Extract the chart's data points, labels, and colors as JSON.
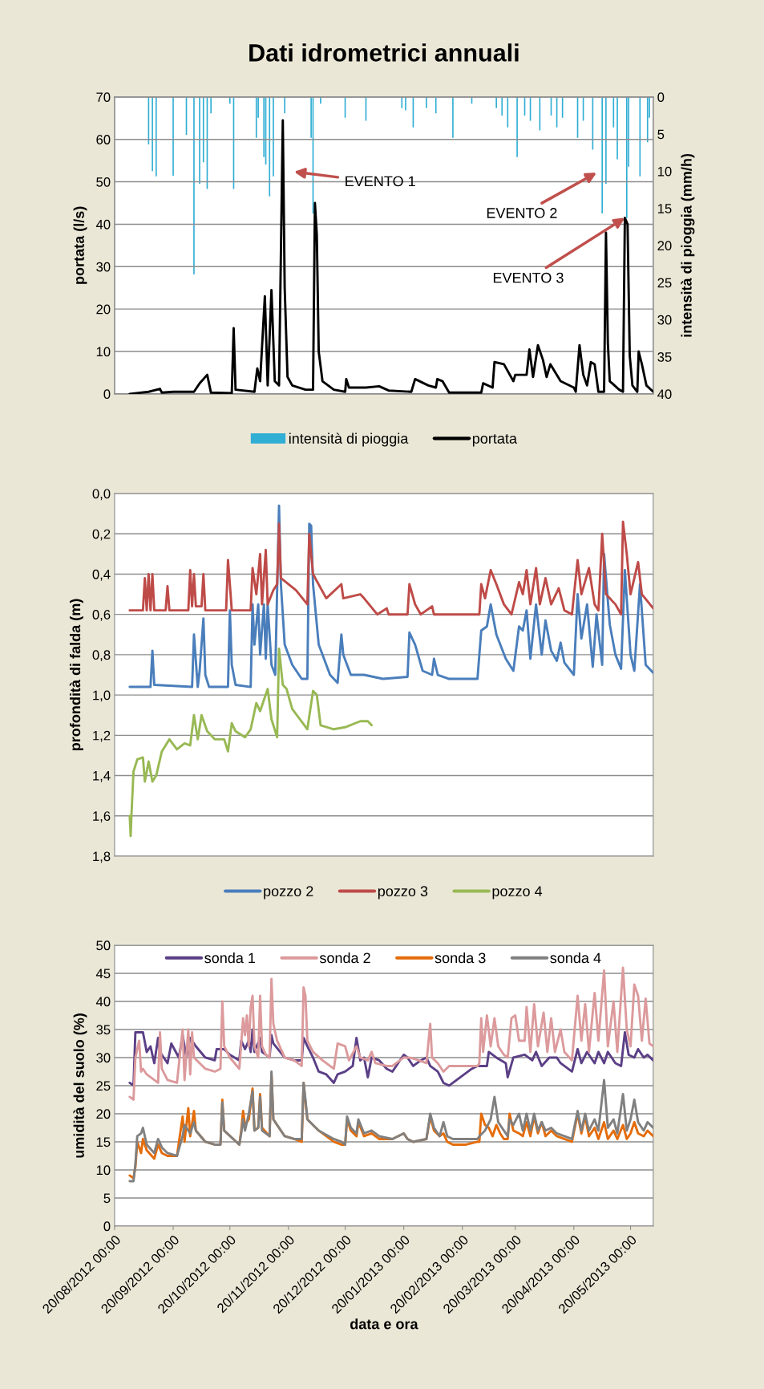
{
  "chart_data": [
    {
      "type": "line",
      "title": "Dati idrometrici annuali",
      "ylabel": "portata (l/s)",
      "y2label": "intensità di pioggia (mm/h)",
      "xlim": [
        "2012-08-20",
        "2013-06-01"
      ],
      "ylim": [
        0,
        70
      ],
      "yticks": [
        0,
        10,
        20,
        30,
        40,
        50,
        60,
        70
      ],
      "y2lim": [
        40,
        0
      ],
      "y2ticks": [
        0,
        5,
        10,
        15,
        20,
        25,
        30,
        35,
        40
      ],
      "grid": "y",
      "legend": "bottom",
      "tick_labels": "y",
      "series": [
        {
          "name": "intensità di pioggia",
          "type": "bar",
          "axis": "y2",
          "color": "#31aed4",
          "x": [
            "2012-09-07",
            "2012-09-09",
            "2012-09-11",
            "2012-09-20",
            "2012-09-27",
            "2012-10-01",
            "2012-10-04",
            "2012-10-06",
            "2012-10-08",
            "2012-10-10",
            "2012-10-20",
            "2012-10-22",
            "2012-11-03",
            "2012-11-04",
            "2012-11-07",
            "2012-11-08",
            "2012-11-10",
            "2012-11-12",
            "2012-11-18",
            "2012-12-02",
            "2012-12-03",
            "2012-12-07",
            "2012-12-20",
            "2012-12-31",
            "2013-01-19",
            "2013-01-21",
            "2013-01-25",
            "2013-02-01",
            "2013-02-06",
            "2013-02-15",
            "2013-02-25",
            "2013-03-10",
            "2013-03-13",
            "2013-03-16",
            "2013-03-21",
            "2013-03-25",
            "2013-03-28",
            "2013-04-02",
            "2013-04-08",
            "2013-04-11",
            "2013-04-14",
            "2013-04-22",
            "2013-04-25",
            "2013-04-30",
            "2013-05-05",
            "2013-05-07",
            "2013-05-11",
            "2013-05-13",
            "2013-05-18",
            "2013-05-19",
            "2013-05-25",
            "2013-05-29",
            "2013-05-30"
          ],
          "values": [
            6.4,
            10,
            10.7,
            10.6,
            5.1,
            23.9,
            11.7,
            8.8,
            12.4,
            2.2,
            0.9,
            12.4,
            5.5,
            2.8,
            8.1,
            9.1,
            13.4,
            10.7,
            2.2,
            5.5,
            15.7,
            0.9,
            2.8,
            3.2,
            1.5,
            1.8,
            4.1,
            1.5,
            2.2,
            5.5,
            0.9,
            1.5,
            2.5,
            4.1,
            8.1,
            2.5,
            3.2,
            4.5,
            2.5,
            4.1,
            2.8,
            5.5,
            3.2,
            7.1,
            15.7,
            11.7,
            4.1,
            8.4,
            16.3,
            9.4,
            10.7,
            6.1,
            2.8
          ]
        },
        {
          "name": "portata",
          "type": "line",
          "color": "#000000",
          "x": [
            "2012-08-28",
            "2012-09-07",
            "2012-09-13",
            "2012-09-14",
            "2012-09-20",
            "2012-10-01",
            "2012-10-04",
            "2012-10-08",
            "2012-10-10",
            "2012-10-21",
            "2012-10-22",
            "2012-10-23",
            "2012-11-02",
            "2012-11-03T12:00",
            "2012-11-05",
            "2012-11-07T12:00",
            "2012-11-09",
            "2012-11-11",
            "2012-11-12T18:00",
            "2012-11-15",
            "2012-11-17",
            "2012-11-18",
            "2012-11-19T12:00",
            "2012-11-22",
            "2012-11-29",
            "2012-12-03",
            "2012-12-04",
            "2012-12-05",
            "2012-12-06",
            "2012-12-08",
            "2012-12-14",
            "2012-12-20",
            "2012-12-20T14:00",
            "2012-12-22",
            "2012-12-31",
            "2013-01-07",
            "2013-01-12",
            "2013-01-24",
            "2013-01-26",
            "2013-02-02",
            "2013-02-06",
            "2013-02-06T18:00",
            "2013-02-09T12:00",
            "2013-02-13",
            "2013-03-02",
            "2013-03-03",
            "2013-03-08",
            "2013-03-09",
            "2013-03-14",
            "2013-03-19",
            "2013-03-20",
            "2013-03-26",
            "2013-03-27T12:00",
            "2013-03-29T10:00",
            "2013-04-01",
            "2013-04-03T16:00",
            "2013-04-05T14:00",
            "2013-04-07T14:00",
            "2013-04-13",
            "2013-04-20",
            "2013-04-21",
            "2013-04-23",
            "2013-04-25",
            "2013-04-27",
            "2013-04-29",
            "2013-05-01",
            "2013-05-03",
            "2013-05-06",
            "2013-05-07",
            "2013-05-08",
            "2013-05-09",
            "2013-05-14",
            "2013-05-16",
            "2013-05-17",
            "2013-05-18T10:00",
            "2013-05-19T14:00",
            "2013-05-21",
            "2013-05-23T14:00",
            "2013-05-24T07:00",
            "2013-05-26",
            "2013-05-28T10:00",
            "2013-06-01"
          ],
          "values": [
            0,
            0.5,
            1.2,
            0.3,
            0.5,
            0.5,
            2.5,
            4.5,
            0.3,
            0.2,
            15.5,
            1,
            0.5,
            6,
            3,
            23,
            2,
            24.5,
            3,
            2,
            64.5,
            25,
            4,
            2,
            1,
            1,
            45,
            37.5,
            10,
            3,
            1,
            0.5,
            3.5,
            1.5,
            1.5,
            1.8,
            0.8,
            0.5,
            3.5,
            2,
            1.5,
            3.5,
            3,
            0.3,
            0.3,
            2.5,
            1.5,
            7.5,
            7,
            3,
            4.5,
            4.5,
            10.5,
            4,
            11.5,
            8,
            4,
            7,
            3,
            1.5,
            0.5,
            11.5,
            4.5,
            2,
            7.5,
            7,
            0.5,
            0.5,
            38,
            12,
            3,
            1,
            0.5,
            41.5,
            40,
            9,
            2,
            0.5,
            10,
            7,
            2,
            0.5
          ]
        }
      ],
      "annotations": [
        "EVENTO 1",
        "EVENTO 2",
        {
          "text": "EVENTO 3",
          "x": "2013-05-17",
          "y": 41.5
        }
      ]
    },
    {
      "type": "line",
      "ylabel": "profondità di falda (m)",
      "xlim": [
        "2012-08-20",
        "2013-06-01"
      ],
      "ylim": [
        1.8,
        0.0
      ],
      "yticks": [
        {
          "value": 0,
          "label": "0,0"
        },
        {
          "value": 0.2,
          "label": "0,2"
        },
        {
          "value": 0.4,
          "label": "0,4"
        },
        {
          "value": 0.6,
          "label": "0,6"
        },
        {
          "value": 0.8,
          "label": "0,8"
        },
        {
          "value": 1.0,
          "label": "1,0"
        },
        {
          "value": 1.2,
          "label": "1,2"
        },
        {
          "value": 1.4,
          "label": "1,4"
        },
        {
          "value": 1.6,
          "label": "1,6"
        },
        {
          "value": 1.8,
          "label": "1,8"
        }
      ],
      "grid": "y",
      "legend": "bottom",
      "tick_labels": "y",
      "series": [
        {
          "name": "pozzo 2",
          "color": "#4a7ebb",
          "x": [
            "2012-08-28",
            "2012-09-08",
            "2012-09-09",
            "2012-09-10",
            "2012-09-30",
            "2012-10-01",
            "2012-10-03",
            "2012-10-04",
            "2012-10-06",
            "2012-10-07",
            "2012-10-09",
            "2012-10-19",
            "2012-10-20",
            "2012-10-21",
            "2012-10-23",
            "2012-10-31",
            "2012-11-01",
            "2012-11-02",
            "2012-11-04",
            "2012-11-05",
            "2012-11-07",
            "2012-11-08",
            "2012-11-09",
            "2012-11-11",
            "2012-11-13",
            "2012-11-15",
            "2012-11-16",
            "2012-11-18",
            "2012-11-22",
            "2012-11-27",
            "2012-11-30",
            "2012-12-01",
            "2012-12-02",
            "2012-12-03",
            "2012-12-06",
            "2012-12-12",
            "2012-12-16",
            "2012-12-18",
            "2012-12-19",
            "2012-12-23",
            "2012-12-30",
            "2013-01-09",
            "2013-01-22",
            "2013-01-23",
            "2013-01-26",
            "2013-01-30",
            "2013-02-04",
            "2013-02-05",
            "2013-02-07",
            "2013-02-13",
            "2013-02-28",
            "2013-03-02",
            "2013-03-05",
            "2013-03-07",
            "2013-03-10",
            "2013-03-15",
            "2013-03-19",
            "2013-03-22",
            "2013-03-24",
            "2013-03-26",
            "2013-03-28",
            "2013-03-31",
            "2013-04-03",
            "2013-04-05",
            "2013-04-08",
            "2013-04-11",
            "2013-04-13",
            "2013-04-15",
            "2013-04-20",
            "2013-04-22",
            "2013-04-24",
            "2013-04-27",
            "2013-04-30",
            "2013-05-02",
            "2013-05-05",
            "2013-05-06",
            "2013-05-09",
            "2013-05-12",
            "2013-05-15",
            "2013-05-17",
            "2013-05-20",
            "2013-05-22",
            "2013-05-25",
            "2013-05-28",
            "2013-06-01"
          ],
          "values": [
            0.96,
            0.96,
            0.78,
            0.95,
            0.96,
            0.7,
            0.96,
            0.88,
            0.62,
            0.9,
            0.96,
            0.96,
            0.58,
            0.85,
            0.95,
            0.96,
            0.55,
            0.75,
            0.55,
            0.8,
            0.55,
            0.82,
            0.55,
            0.85,
            0.9,
            0.06,
            0.45,
            0.75,
            0.85,
            0.92,
            0.92,
            0.15,
            0.16,
            0.45,
            0.75,
            0.9,
            0.94,
            0.7,
            0.8,
            0.9,
            0.9,
            0.92,
            0.91,
            0.69,
            0.75,
            0.88,
            0.9,
            0.82,
            0.9,
            0.92,
            0.92,
            0.68,
            0.66,
            0.55,
            0.7,
            0.82,
            0.88,
            0.66,
            0.68,
            0.58,
            0.82,
            0.55,
            0.8,
            0.63,
            0.78,
            0.83,
            0.74,
            0.84,
            0.9,
            0.5,
            0.72,
            0.55,
            0.86,
            0.6,
            0.85,
            0.3,
            0.65,
            0.8,
            0.87,
            0.38,
            0.8,
            0.88,
            0.45,
            0.85,
            0.89
          ]
        },
        {
          "name": "pozzo 3",
          "color": "#be4b48",
          "x": [
            "2012-08-28",
            "2012-09-04",
            "2012-09-05",
            "2012-09-06",
            "2012-09-07",
            "2012-09-08",
            "2012-09-09",
            "2012-09-10",
            "2012-09-16",
            "2012-09-17",
            "2012-09-18",
            "2012-09-28",
            "2012-09-29",
            "2012-09-30",
            "2012-10-01",
            "2012-10-02",
            "2012-10-05",
            "2012-10-06",
            "2012-10-07",
            "2012-10-18",
            "2012-10-19",
            "2012-10-20",
            "2012-10-21",
            "2012-10-31",
            "2012-11-01",
            "2012-11-03",
            "2012-11-05",
            "2012-11-06",
            "2012-11-08",
            "2012-11-09",
            "2012-11-12",
            "2012-11-14",
            "2012-11-15",
            "2012-11-16",
            "2012-11-24",
            "2012-11-30",
            "2012-12-01",
            "2012-12-03",
            "2012-12-10",
            "2012-12-18",
            "2012-12-19",
            "2012-12-28",
            "2012-12-30",
            "2013-01-06",
            "2013-01-11",
            "2013-01-12",
            "2013-01-22",
            "2013-01-23",
            "2013-01-26",
            "2013-01-29",
            "2013-02-04",
            "2013-02-05",
            "2013-03-01",
            "2013-03-02",
            "2013-03-04",
            "2013-03-07",
            "2013-03-10",
            "2013-03-14",
            "2013-03-18",
            "2013-03-22",
            "2013-03-24",
            "2013-03-26",
            "2013-03-28",
            "2013-03-31",
            "2013-04-02",
            "2013-04-05",
            "2013-04-08",
            "2013-04-12",
            "2013-04-15",
            "2013-04-19",
            "2013-04-22",
            "2013-04-24",
            "2013-04-28",
            "2013-05-01",
            "2013-05-03",
            "2013-05-05",
            "2013-05-07",
            "2013-05-12",
            "2013-05-15",
            "2013-05-16",
            "2013-05-18",
            "2013-05-20",
            "2013-05-24",
            "2013-05-26",
            "2013-06-01"
          ],
          "values": [
            0.58,
            0.58,
            0.42,
            0.58,
            0.4,
            0.58,
            0.4,
            0.58,
            0.58,
            0.46,
            0.58,
            0.58,
            0.38,
            0.56,
            0.4,
            0.56,
            0.56,
            0.4,
            0.58,
            0.58,
            0.33,
            0.45,
            0.58,
            0.58,
            0.37,
            0.5,
            0.3,
            0.55,
            0.28,
            0.55,
            0.48,
            0.45,
            0.15,
            0.42,
            0.48,
            0.55,
            0.2,
            0.4,
            0.52,
            0.45,
            0.52,
            0.5,
            0.52,
            0.6,
            0.57,
            0.6,
            0.6,
            0.45,
            0.55,
            0.6,
            0.56,
            0.6,
            0.6,
            0.45,
            0.52,
            0.38,
            0.45,
            0.55,
            0.6,
            0.44,
            0.5,
            0.38,
            0.55,
            0.37,
            0.55,
            0.42,
            0.55,
            0.47,
            0.58,
            0.6,
            0.33,
            0.5,
            0.37,
            0.55,
            0.58,
            0.2,
            0.5,
            0.55,
            0.6,
            0.14,
            0.3,
            0.5,
            0.34,
            0.5,
            0.57
          ]
        },
        {
          "name": "pozzo 4",
          "color": "#98b954",
          "x": [
            "2012-08-28",
            "2012-08-28T12:00",
            "2012-08-29",
            "2012-08-30",
            "2012-09-01",
            "2012-09-04",
            "2012-09-05",
            "2012-09-07",
            "2012-09-09",
            "2012-09-11",
            "2012-09-14",
            "2012-09-18",
            "2012-09-22",
            "2012-09-26",
            "2012-09-29",
            "2012-10-01",
            "2012-10-03",
            "2012-10-05",
            "2012-10-08",
            "2012-10-12",
            "2012-10-17",
            "2012-10-19",
            "2012-10-21",
            "2012-10-23",
            "2012-10-28",
            "2012-10-31",
            "2012-11-03",
            "2012-11-05",
            "2012-11-09",
            "2012-11-11",
            "2012-11-14",
            "2012-11-15",
            "2012-11-17",
            "2012-11-19",
            "2012-11-22",
            "2012-11-26",
            "2012-11-30",
            "2012-12-03",
            "2012-12-05",
            "2012-12-07",
            "2012-12-14",
            "2012-12-20",
            "2012-12-28",
            "2013-01-01",
            "2013-01-03"
          ],
          "values": [
            1.6,
            1.7,
            1.58,
            1.38,
            1.32,
            1.31,
            1.43,
            1.33,
            1.43,
            1.4,
            1.28,
            1.22,
            1.27,
            1.24,
            1.25,
            1.1,
            1.22,
            1.1,
            1.18,
            1.22,
            1.22,
            1.28,
            1.14,
            1.18,
            1.21,
            1.17,
            1.04,
            1.08,
            0.97,
            1.12,
            1.21,
            0.77,
            0.95,
            0.97,
            1.07,
            1.12,
            1.17,
            0.98,
            1.0,
            1.15,
            1.17,
            1.16,
            1.13,
            1.13,
            1.15
          ]
        }
      ]
    },
    {
      "type": "line",
      "ylabel": "umidità del suolo (%)",
      "xlabel": "data e ora",
      "xlim": [
        "2012-08-20",
        "2013-06-01"
      ],
      "xticks": [
        {
          "value": "2012-08-20",
          "label": "20/08/2012 00:00"
        },
        {
          "value": "2012-09-20",
          "label": "20/09/2012 00:00"
        },
        {
          "value": "2012-10-20",
          "label": "20/10/2012 00:00"
        },
        {
          "value": "2012-11-20",
          "label": "20/11/2012 00:00"
        },
        {
          "value": "2012-12-20",
          "label": "20/12/2012 00:00"
        },
        {
          "value": "2013-01-20",
          "label": "20/01/2013 00:00"
        },
        {
          "value": "2013-02-20",
          "label": "20/02/2013 00:00"
        },
        {
          "value": "2013-03-20",
          "label": "20/03/2013 00:00"
        },
        {
          "value": "2013-04-20",
          "label": "20/04/2013 00:00"
        },
        {
          "value": "2013-05-20",
          "label": "20/05/2013 00:00"
        }
      ],
      "ylim": [
        0,
        50
      ],
      "yticks": [
        0,
        5,
        10,
        15,
        20,
        25,
        30,
        35,
        40,
        45,
        50
      ],
      "grid": "y",
      "legend": "top",
      "series": [
        {
          "name": "sonda 1",
          "color": "#5b3f86",
          "x": [
            "2012-08-28",
            "2012-08-30",
            "2012-08-31",
            "2012-09-04",
            "2012-09-06",
            "2012-09-08",
            "2012-09-10",
            "2012-09-12",
            "2012-09-13",
            "2012-09-17",
            "2012-09-19",
            "2012-09-23",
            "2012-09-25",
            "2012-09-27",
            "2012-09-29",
            "2012-10-02",
            "2012-10-07",
            "2012-10-12",
            "2012-10-13",
            "2012-10-17",
            "2012-10-20",
            "2012-10-25",
            "2012-10-26",
            "2012-10-28",
            "2012-10-30",
            "2012-10-31",
            "2012-11-01",
            "2012-11-02",
            "2012-11-05",
            "2012-11-06",
            "2012-11-10",
            "2012-11-11",
            "2012-11-12",
            "2012-11-18",
            "2012-11-23",
            "2012-11-27",
            "2012-11-28",
            "2012-11-30",
            "2012-12-03",
            "2012-12-06",
            "2012-12-10",
            "2012-12-14",
            "2012-12-16",
            "2012-12-20",
            "2012-12-24",
            "2012-12-26",
            "2012-12-28",
            "2012-12-30",
            "2013-01-01",
            "2013-01-03",
            "2013-01-07",
            "2013-01-11",
            "2013-01-14",
            "2013-01-20",
            "2013-01-22",
            "2013-01-25",
            "2013-01-29",
            "2013-02-01",
            "2013-02-03",
            "2013-02-07",
            "2013-02-10",
            "2013-02-13",
            "2013-02-19",
            "2013-02-25",
            "2013-02-28",
            "2013-03-05",
            "2013-03-06",
            "2013-03-10",
            "2013-03-15",
            "2013-03-16",
            "2013-03-19",
            "2013-03-25",
            "2013-03-29",
            "2013-03-31",
            "2013-04-03",
            "2013-04-07",
            "2013-04-11",
            "2013-04-13",
            "2013-04-19",
            "2013-04-22",
            "2013-04-24",
            "2013-04-27",
            "2013-05-01",
            "2013-05-03",
            "2013-05-06",
            "2013-05-08",
            "2013-05-12",
            "2013-05-15",
            "2013-05-16",
            "2013-05-17",
            "2013-05-19",
            "2013-05-22",
            "2013-05-24",
            "2013-05-27",
            "2013-05-29",
            "2013-06-01"
          ],
          "values": [
            25.5,
            25,
            34.5,
            34.5,
            31,
            32,
            29,
            33.5,
            31,
            29,
            32.5,
            30,
            34,
            30,
            33.5,
            32,
            30,
            29.5,
            31.5,
            31.5,
            30.5,
            29.5,
            33,
            31.5,
            33,
            31,
            35,
            31,
            33.5,
            31,
            30,
            34,
            32.5,
            30,
            29.5,
            29.5,
            33.5,
            32,
            30,
            27.5,
            27,
            25.5,
            27,
            27.5,
            28.5,
            33.5,
            29.5,
            30,
            26.5,
            30,
            29.5,
            28,
            27.5,
            30.5,
            30,
            28.5,
            29.5,
            30,
            28.5,
            27.5,
            25.5,
            25,
            26.5,
            28,
            28.5,
            28.5,
            31,
            30,
            29,
            26.5,
            30,
            30.5,
            29.5,
            31,
            28.5,
            30,
            30,
            29,
            27.5,
            31.5,
            29,
            31,
            29,
            31,
            29,
            31,
            29,
            28.5,
            31.5,
            34.5,
            30.5,
            30,
            31.5,
            30,
            30.5,
            29.5
          ]
        },
        {
          "name": "sonda 2",
          "color": "#dc9a9c",
          "x": [
            "2012-08-28",
            "2012-08-30",
            "2012-08-31",
            "2012-09-02",
            "2012-09-03",
            "2012-09-04",
            "2012-09-06",
            "2012-09-12",
            "2012-09-13",
            "2012-09-14",
            "2012-09-17",
            "2012-09-22",
            "2012-09-25",
            "2012-09-26",
            "2012-09-28",
            "2012-09-29",
            "2012-09-30",
            "2012-10-01",
            "2012-10-07",
            "2012-10-12",
            "2012-10-15",
            "2012-10-16",
            "2012-10-17",
            "2012-10-20",
            "2012-10-25",
            "2012-10-27",
            "2012-10-28",
            "2012-10-29",
            "2012-10-30",
            "2012-10-31",
            "2012-11-01",
            "2012-11-02",
            "2012-11-04",
            "2012-11-05",
            "2012-11-06",
            "2012-11-08",
            "2012-11-10",
            "2012-11-11",
            "2012-11-12",
            "2012-11-14",
            "2012-11-18",
            "2012-11-23",
            "2012-11-27",
            "2012-11-28",
            "2012-11-29",
            "2012-11-30",
            "2012-12-03",
            "2012-12-08",
            "2012-12-14",
            "2012-12-16",
            "2012-12-20",
            "2012-12-22",
            "2012-12-26",
            "2012-12-28",
            "2013-01-01",
            "2013-01-03",
            "2013-01-05",
            "2013-01-11",
            "2013-01-14",
            "2013-01-20",
            "2013-01-23",
            "2013-01-28",
            "2013-02-01",
            "2013-02-03",
            "2013-02-04",
            "2013-02-07",
            "2013-02-10",
            "2013-02-13",
            "2013-02-20",
            "2013-02-28",
            "2013-03-01",
            "2013-03-02",
            "2013-03-03",
            "2013-03-05",
            "2013-03-07",
            "2013-03-09",
            "2013-03-11",
            "2013-03-14",
            "2013-03-16",
            "2013-03-18",
            "2013-03-20",
            "2013-03-22",
            "2013-03-25",
            "2013-03-26",
            "2013-03-28",
            "2013-03-30",
            "2013-04-01",
            "2013-04-04",
            "2013-04-06",
            "2013-04-08",
            "2013-04-10",
            "2013-04-13",
            "2013-04-15",
            "2013-04-19",
            "2013-04-22",
            "2013-04-24",
            "2013-04-26",
            "2013-04-28",
            "2013-05-01",
            "2013-05-03",
            "2013-05-06",
            "2013-05-08",
            "2013-05-11",
            "2013-05-13",
            "2013-05-16",
            "2013-05-18",
            "2013-05-20",
            "2013-05-22",
            "2013-05-24",
            "2013-05-26",
            "2013-05-28",
            "2013-05-30",
            "2013-06-01"
          ],
          "values": [
            23,
            22.5,
            30,
            33,
            27.5,
            28,
            27,
            25.5,
            34.5,
            28,
            26,
            25.5,
            35,
            26,
            35,
            27,
            34.5,
            30,
            28,
            27.5,
            28,
            40,
            32,
            30,
            28,
            37,
            34,
            37.5,
            32,
            39,
            41,
            32,
            30,
            41,
            32,
            30.5,
            30,
            44,
            36,
            33,
            30,
            29.5,
            28.5,
            42.5,
            41,
            33,
            31,
            29.5,
            28,
            32.5,
            32,
            29.5,
            32,
            30,
            29.5,
            31,
            29,
            28.5,
            28.5,
            30,
            30,
            29.5,
            29,
            36,
            30,
            29,
            27.5,
            28.5,
            28.5,
            28.5,
            29,
            37,
            31,
            37.5,
            32,
            37,
            32,
            30.5,
            30,
            37,
            37.5,
            33,
            33,
            39,
            31,
            39.5,
            32,
            38,
            31,
            37,
            31,
            35,
            31,
            29.5,
            41,
            33,
            39.5,
            31,
            41.5,
            33,
            45.5,
            32,
            40,
            31,
            46,
            35,
            32,
            43,
            41,
            33,
            40.5,
            32.5,
            32
          ]
        },
        {
          "name": "sonda 3",
          "color": "#e46c0a",
          "x": [
            "2012-08-28",
            "2012-08-30",
            "2012-08-31",
            "2012-09-01",
            "2012-09-03",
            "2012-09-04",
            "2012-09-06",
            "2012-09-10",
            "2012-09-12",
            "2012-09-14",
            "2012-09-17",
            "2012-09-22",
            "2012-09-25",
            "2012-09-26",
            "2012-09-28",
            "2012-09-29",
            "2012-10-01",
            "2012-10-02",
            "2012-10-07",
            "2012-10-12",
            "2012-10-15",
            "2012-10-16",
            "2012-10-17",
            "2012-10-25",
            "2012-10-26",
            "2012-10-27",
            "2012-10-28",
            "2012-10-30",
            "2012-11-01",
            "2012-11-02",
            "2012-11-04",
            "2012-11-05",
            "2012-11-06",
            "2012-11-10",
            "2012-11-11",
            "2012-11-12",
            "2012-11-18",
            "2012-11-23",
            "2012-11-27",
            "2012-11-28",
            "2012-11-29",
            "2012-11-30",
            "2012-12-06",
            "2012-12-14",
            "2012-12-18",
            "2012-12-20",
            "2012-12-21",
            "2012-12-23",
            "2012-12-26",
            "2012-12-27",
            "2012-12-30",
            "2013-01-03",
            "2013-01-07",
            "2013-01-14",
            "2013-01-20",
            "2013-01-22",
            "2013-01-25",
            "2013-02-01",
            "2013-02-03",
            "2013-02-05",
            "2013-02-08",
            "2013-02-10",
            "2013-02-12",
            "2013-02-15",
            "2013-02-22",
            "2013-02-28",
            "2013-03-01",
            "2013-03-02",
            "2013-03-04",
            "2013-03-06",
            "2013-03-08",
            "2013-03-10",
            "2013-03-12",
            "2013-03-14",
            "2013-03-16",
            "2013-03-17",
            "2013-03-19",
            "2013-03-22",
            "2013-03-24",
            "2013-03-26",
            "2013-03-28",
            "2013-03-30",
            "2013-04-01",
            "2013-04-03",
            "2013-04-05",
            "2013-04-08",
            "2013-04-11",
            "2013-04-15",
            "2013-04-19",
            "2013-04-22",
            "2013-04-24",
            "2013-04-26",
            "2013-04-28",
            "2013-05-01",
            "2013-05-03",
            "2013-05-06",
            "2013-05-08",
            "2013-05-11",
            "2013-05-13",
            "2013-05-16",
            "2013-05-18",
            "2013-05-20",
            "2013-05-22",
            "2013-05-24",
            "2013-05-27",
            "2013-05-29",
            "2013-06-01"
          ],
          "values": [
            9,
            8.5,
            10.5,
            15,
            13,
            15.5,
            13.5,
            12,
            14.5,
            13,
            12.5,
            12.5,
            19.5,
            15,
            21,
            16,
            20.5,
            17,
            15,
            14.5,
            14.5,
            22.5,
            17,
            14.5,
            17,
            20.5,
            18,
            19,
            24.5,
            17,
            17.5,
            23.5,
            17.5,
            16,
            27,
            19,
            16,
            15.5,
            15,
            25.5,
            22,
            19,
            17,
            15,
            14.5,
            14.5,
            19,
            17,
            16,
            18.5,
            16,
            16.5,
            15.5,
            15.5,
            16.5,
            15.5,
            15,
            15.5,
            19.5,
            17,
            16,
            16.5,
            15,
            14.5,
            14.5,
            15,
            15,
            20,
            18,
            17.5,
            16,
            18,
            16.5,
            15.5,
            15.5,
            20,
            17,
            16.5,
            16,
            18.5,
            16,
            19.5,
            16.5,
            18.5,
            16,
            17,
            16,
            15.5,
            15,
            20,
            16.5,
            19.5,
            16,
            17.5,
            15.5,
            18.5,
            15.5,
            17,
            15.5,
            18,
            15.5,
            16.5,
            18.5,
            16.5,
            16,
            17,
            16
          ]
        },
        {
          "name": "sonda 4",
          "color": "#808080",
          "x": [
            "2012-08-28",
            "2012-08-30",
            "2012-08-31",
            "2012-09-01",
            "2012-09-03",
            "2012-09-04",
            "2012-09-06",
            "2012-09-10",
            "2012-09-12",
            "2012-09-14",
            "2012-09-17",
            "2012-09-22",
            "2012-09-25",
            "2012-09-26",
            "2012-09-28",
            "2012-09-29",
            "2012-10-01",
            "2012-10-02",
            "2012-10-07",
            "2012-10-12",
            "2012-10-15",
            "2012-10-16",
            "2012-10-17",
            "2012-10-25",
            "2012-10-26",
            "2012-10-27",
            "2012-10-28",
            "2012-10-30",
            "2012-11-01",
            "2012-11-02",
            "2012-11-04",
            "2012-11-05",
            "2012-11-06",
            "2012-11-10",
            "2012-11-11",
            "2012-11-12",
            "2012-11-18",
            "2012-11-23",
            "2012-11-27",
            "2012-11-28",
            "2012-11-29",
            "2012-11-30",
            "2012-12-06",
            "2012-12-14",
            "2012-12-18",
            "2012-12-20",
            "2012-12-21",
            "2012-12-23",
            "2012-12-26",
            "2012-12-27",
            "2012-12-30",
            "2013-01-03",
            "2013-01-07",
            "2013-01-14",
            "2013-01-20",
            "2013-01-22",
            "2013-01-25",
            "2013-02-01",
            "2013-02-03",
            "2013-02-05",
            "2013-02-08",
            "2013-02-10",
            "2013-02-12",
            "2013-02-15",
            "2013-02-22",
            "2013-02-28",
            "2013-03-01",
            "2013-03-04",
            "2013-03-07",
            "2013-03-09",
            "2013-03-11",
            "2013-03-14",
            "2013-03-16",
            "2013-03-17",
            "2013-03-19",
            "2013-03-22",
            "2013-03-24",
            "2013-03-26",
            "2013-03-28",
            "2013-03-30",
            "2013-04-01",
            "2013-04-03",
            "2013-04-05",
            "2013-04-08",
            "2013-04-11",
            "2013-04-15",
            "2013-04-19",
            "2013-04-22",
            "2013-04-24",
            "2013-04-26",
            "2013-04-28",
            "2013-05-01",
            "2013-05-03",
            "2013-05-06",
            "2013-05-08",
            "2013-05-11",
            "2013-05-13",
            "2013-05-16",
            "2013-05-18",
            "2013-05-20",
            "2013-05-22",
            "2013-05-24",
            "2013-05-27",
            "2013-05-29",
            "2013-06-01"
          ],
          "values": [
            8,
            8,
            11,
            16,
            16.5,
            17.5,
            14.5,
            13,
            15.5,
            14,
            13,
            12.5,
            16,
            18,
            17,
            16.5,
            18.5,
            17,
            15,
            14.5,
            14.5,
            22,
            17,
            14.5,
            16.5,
            19,
            17,
            20,
            24,
            17,
            17.5,
            23,
            17,
            16,
            27.5,
            19,
            16,
            15.5,
            15.5,
            25.5,
            22.5,
            19,
            17,
            15.5,
            15,
            14.5,
            19.5,
            17.5,
            16.5,
            19,
            16.5,
            17,
            16,
            15.5,
            16.5,
            15.5,
            15,
            15.5,
            20,
            17.5,
            16,
            18.5,
            16,
            15.5,
            15.5,
            15.5,
            16,
            17,
            19,
            23,
            18.5,
            17,
            16,
            19,
            18,
            20,
            17,
            20,
            17,
            20,
            17,
            18.5,
            17,
            17.5,
            16.5,
            16,
            15.5,
            20.5,
            17,
            20,
            17,
            19,
            17,
            26,
            17.5,
            19,
            16.5,
            23.5,
            17,
            19,
            22.5,
            18.5,
            17,
            18.5,
            17.5
          ]
        }
      ]
    }
  ]
}
